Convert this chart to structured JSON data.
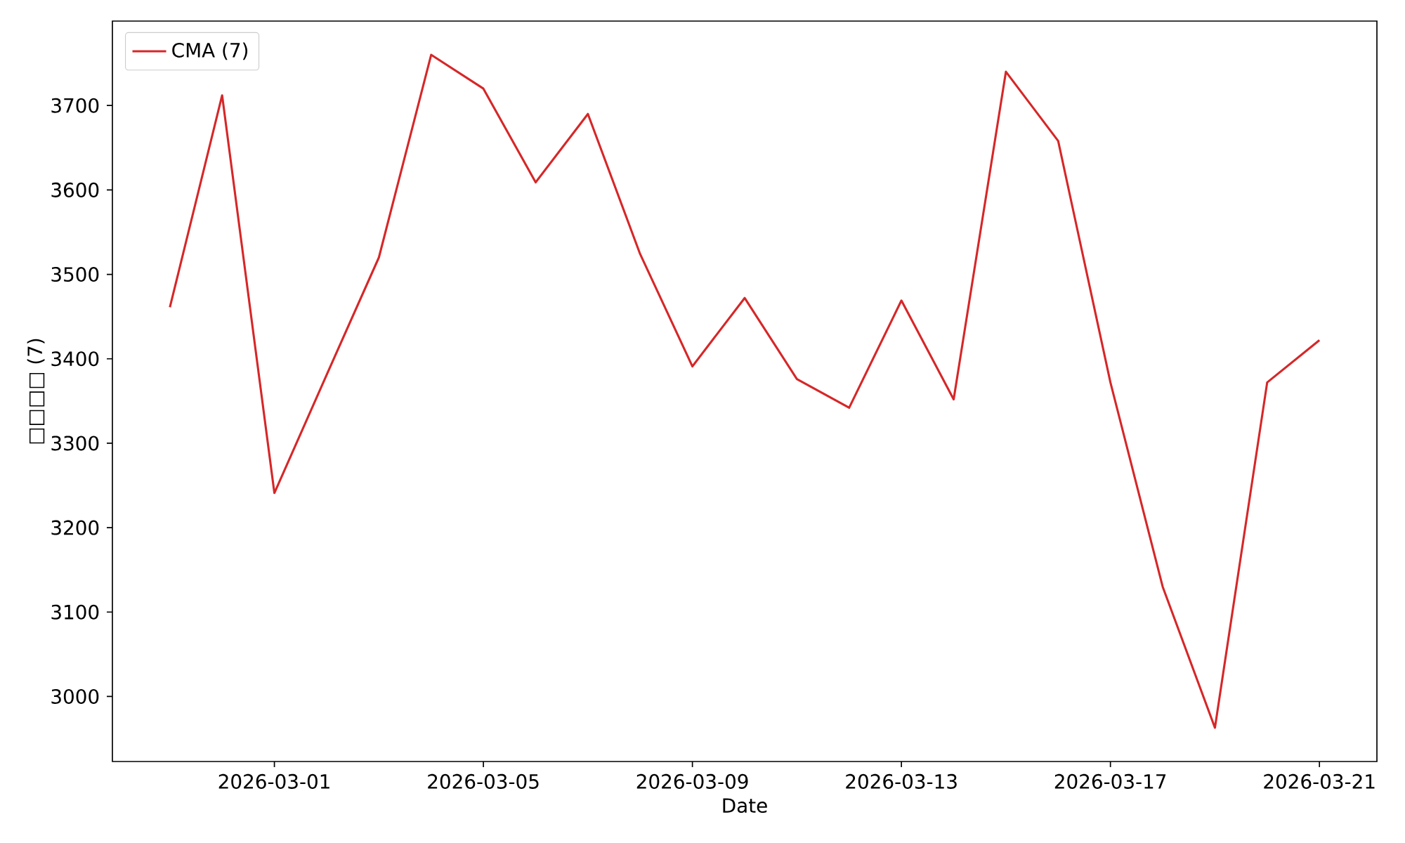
{
  "chart_data": {
    "type": "line",
    "xlabel": "Date",
    "ylabel": "□□□□ (7)",
    "x": [
      "2026-02-27",
      "2026-02-28",
      "2026-03-01",
      "2026-03-02",
      "2026-03-03",
      "2026-03-04",
      "2026-03-05",
      "2026-03-06",
      "2026-03-07",
      "2026-03-08",
      "2026-03-09",
      "2026-03-10",
      "2026-03-11",
      "2026-03-12",
      "2026-03-13",
      "2026-03-14",
      "2026-03-15",
      "2026-03-16",
      "2026-03-17",
      "2026-03-18",
      "2026-03-19",
      "2026-03-20",
      "2026-03-21"
    ],
    "series": [
      {
        "name": "CMA (7)",
        "color": "#d62728",
        "values": [
          3461,
          3712,
          3241,
          3381,
          3520,
          3760,
          3720,
          3609,
          3690,
          3524,
          3391,
          3472,
          3376,
          3342,
          3469,
          3352,
          3740,
          3658,
          3372,
          3130,
          2963,
          3372,
          3422
        ]
      }
    ],
    "xlim": [
      "2026-02-25T21:36",
      "2026-03-22T02:24"
    ],
    "xticks": [
      "2026-03-01",
      "2026-03-05",
      "2026-03-09",
      "2026-03-13",
      "2026-03-17",
      "2026-03-21"
    ],
    "ylim": [
      2923,
      3800
    ],
    "yticks": [
      3000,
      3100,
      3200,
      3300,
      3400,
      3500,
      3600,
      3700
    ],
    "legend": "top left",
    "grid": false,
    "marker": "none",
    "line_style": "solid"
  }
}
